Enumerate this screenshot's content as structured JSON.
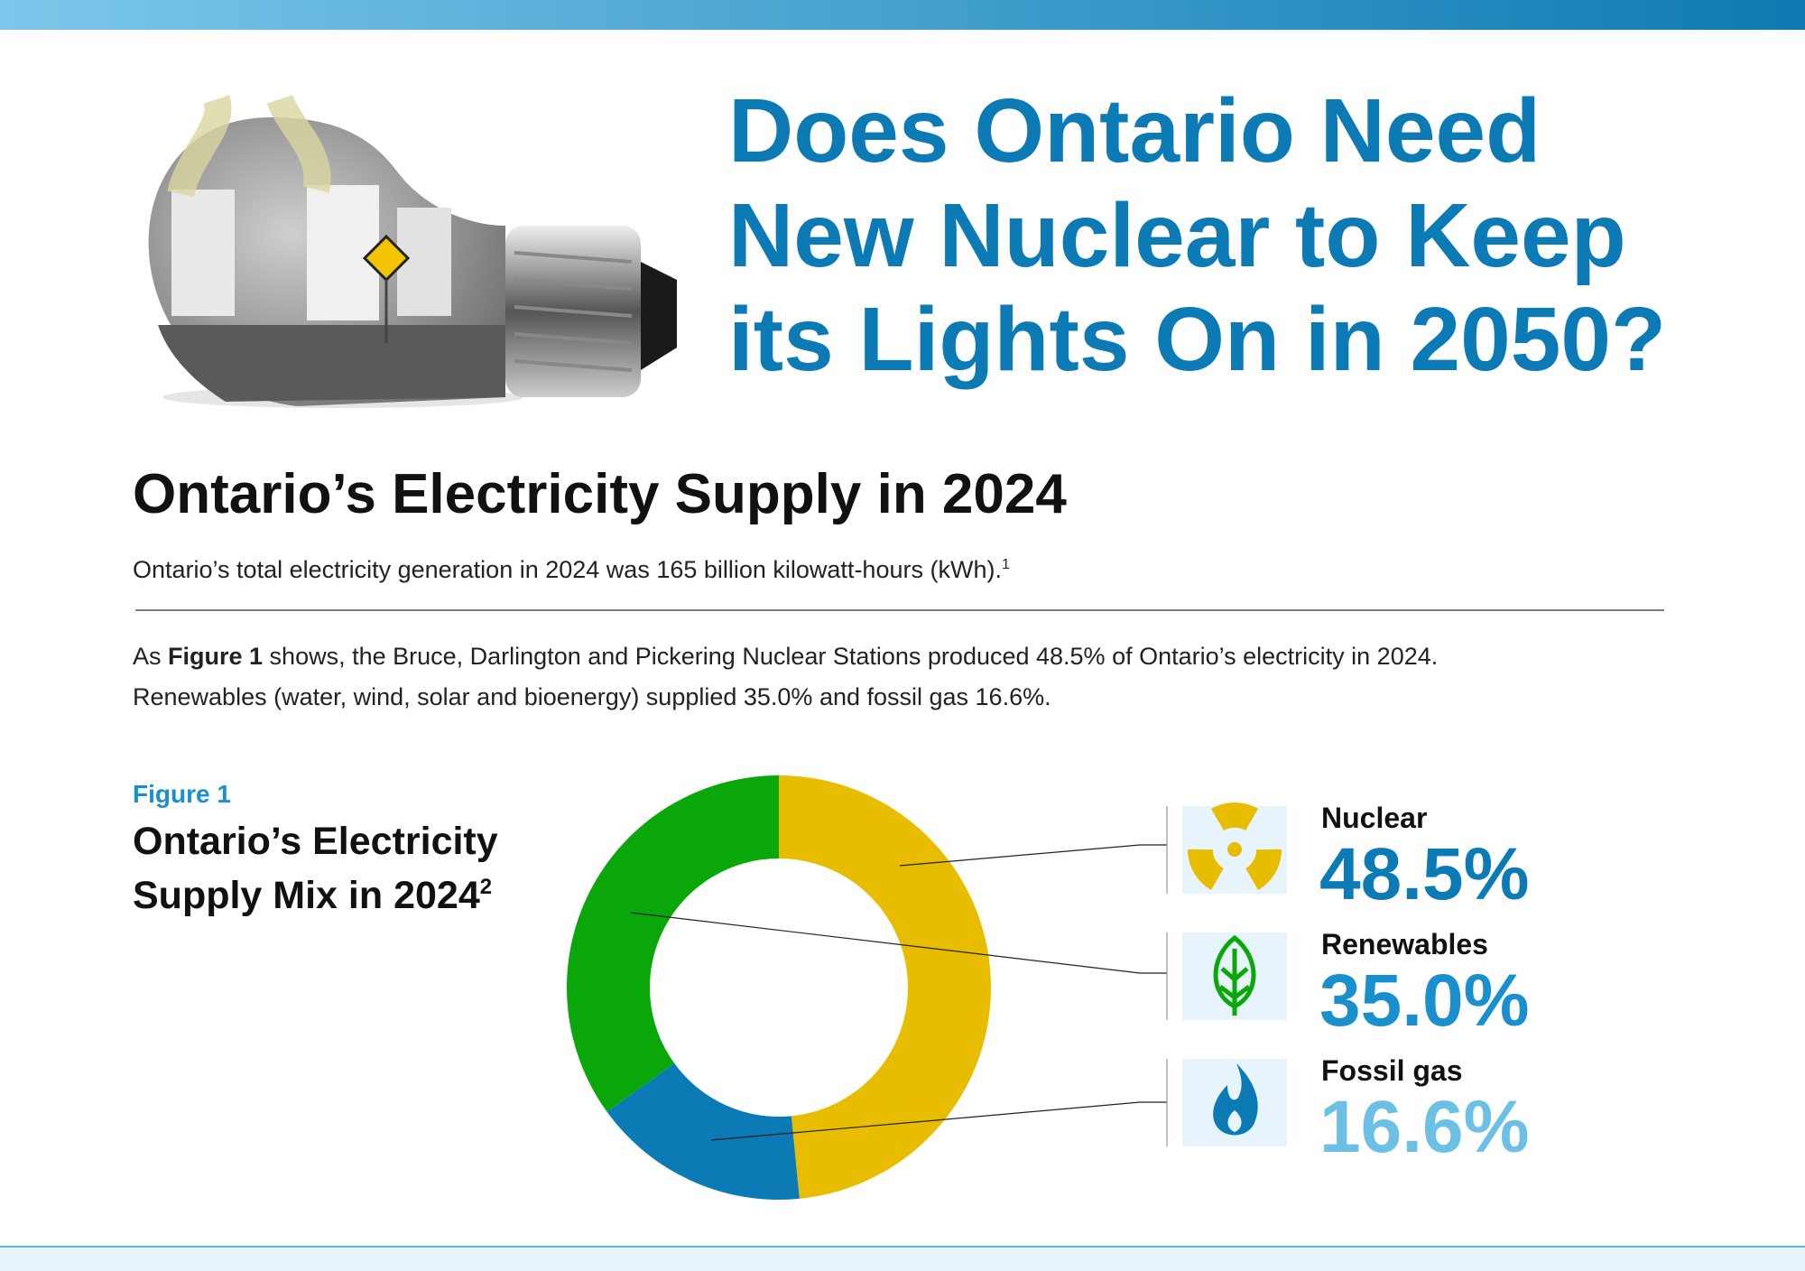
{
  "header": {
    "title_lines": [
      "Does Ontario Need",
      "New Nuclear to Keep",
      "its Lights On in 2050?"
    ]
  },
  "section": {
    "heading": "Ontario’s Electricity Supply in 2024",
    "intro": "Ontario’s total electricity generation in 2024 was 165 billion kilowatt-hours (kWh).",
    "intro_note": "1",
    "para_start": "As ",
    "para_bold": "Figure 1",
    "para_rest": " shows, the Bruce, Darlington and Pickering Nuclear Stations produced 48.5% of Ontario’s electricity in 2024.",
    "para_line2": "Renewables (water, wind, solar and bioenergy) supplied 35.0% and fossil gas 16.6%."
  },
  "chart_data": {
    "type": "donut",
    "figure_label": "Figure 1",
    "title_lines": [
      "Ontario’s Electricity",
      "Supply Mix in 2024"
    ],
    "title_note": "2",
    "categories": [
      "Nuclear",
      "Renewables",
      "Fossil gas"
    ],
    "values": [
      48.5,
      35.0,
      16.6
    ],
    "value_labels": [
      "48.5%",
      "35.0%",
      "16.6%"
    ],
    "colors": [
      "#e8bd00",
      "#0aa70a",
      "#0b7ab5"
    ],
    "label_colors": [
      "#0b7ab5",
      "#1a8fce",
      "#6cc0e6"
    ]
  }
}
